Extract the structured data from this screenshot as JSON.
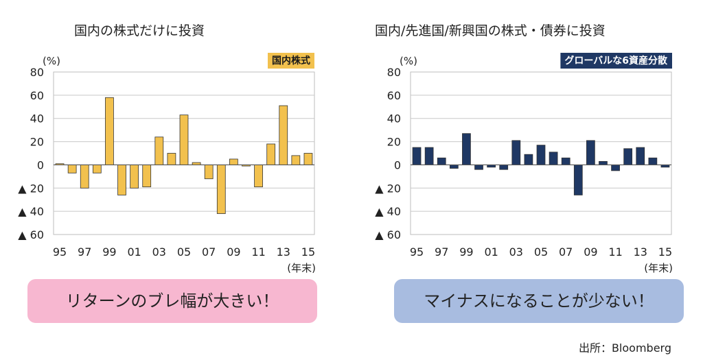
{
  "source": "出所：Bloomberg",
  "panels": {
    "left": {
      "title": "国内の株式だけに投資",
      "callout": "リターンのブレ幅が大きい！"
    },
    "right": {
      "title": "国内/先進国/新興国の株式・債券に投資",
      "callout": "マイナスになることが少ない！"
    }
  },
  "chart_data": [
    {
      "type": "bar",
      "legend": "国内株式",
      "legend_bg": "#f2c14e",
      "legend_fg": "#1a1a1a",
      "bar_color": "#f2c14e",
      "unit": "(%)",
      "x_unit": "(年末)",
      "ylim": [
        -60,
        80
      ],
      "yticks": [
        {
          "v": 80,
          "label": "80"
        },
        {
          "v": 60,
          "label": "60"
        },
        {
          "v": 40,
          "label": "40"
        },
        {
          "v": 20,
          "label": "20"
        },
        {
          "v": 0,
          "label": "0"
        },
        {
          "v": -20,
          "label": "▲ 20"
        },
        {
          "v": -40,
          "label": "▲ 40"
        },
        {
          "v": -60,
          "label": "▲ 60"
        }
      ],
      "x_tick_labels": [
        "95",
        "97",
        "99",
        "01",
        "03",
        "05",
        "07",
        "09",
        "11",
        "13",
        "15"
      ],
      "categories": [
        "95",
        "96",
        "97",
        "98",
        "99",
        "00",
        "01",
        "02",
        "03",
        "04",
        "05",
        "06",
        "07",
        "08",
        "09",
        "10",
        "11",
        "12",
        "13",
        "14",
        "15"
      ],
      "values": [
        1,
        -7,
        -20,
        -7,
        58,
        -26,
        -20,
        -19,
        24,
        10,
        43,
        2,
        -12,
        -42,
        5,
        -1,
        -19,
        18,
        51,
        8,
        10
      ]
    },
    {
      "type": "bar",
      "legend": "グローバルな6資産分散",
      "legend_bg": "#1f3864",
      "legend_fg": "#ffffff",
      "bar_color": "#1f3864",
      "unit": "(%)",
      "x_unit": "(年末)",
      "ylim": [
        -60,
        80
      ],
      "yticks": [
        {
          "v": 80,
          "label": "80"
        },
        {
          "v": 60,
          "label": "60"
        },
        {
          "v": 40,
          "label": "40"
        },
        {
          "v": 20,
          "label": "20"
        },
        {
          "v": 0,
          "label": "0"
        },
        {
          "v": -20,
          "label": "▲ 20"
        },
        {
          "v": -40,
          "label": "▲ 40"
        },
        {
          "v": -60,
          "label": "▲ 60"
        }
      ],
      "x_tick_labels": [
        "95",
        "97",
        "99",
        "01",
        "03",
        "05",
        "07",
        "09",
        "11",
        "13",
        "15"
      ],
      "categories": [
        "95",
        "96",
        "97",
        "98",
        "99",
        "00",
        "01",
        "02",
        "03",
        "04",
        "05",
        "06",
        "07",
        "08",
        "09",
        "10",
        "11",
        "12",
        "13",
        "14",
        "15"
      ],
      "values": [
        15,
        15,
        6,
        -3,
        27,
        -4,
        -2,
        -4,
        21,
        9,
        17,
        11,
        6,
        -26,
        21,
        3,
        -5,
        14,
        15,
        6,
        -2
      ]
    }
  ]
}
